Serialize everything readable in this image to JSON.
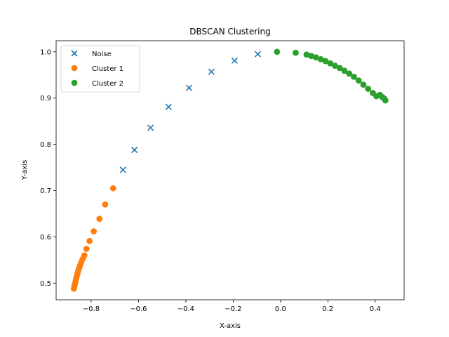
{
  "chart_data": {
    "type": "scatter",
    "title": "DBSCAN Clustering",
    "xlabel": "X-axis",
    "ylabel": "Y-axis",
    "xlim": [
      -0.948,
      0.522
    ],
    "ylim": [
      0.464,
      1.024
    ],
    "xticks": [
      -0.8,
      -0.6,
      -0.4,
      -0.2,
      0.0,
      0.2,
      0.4
    ],
    "xtick_labels": [
      "−0.8",
      "−0.6",
      "−0.4",
      "−0.2",
      "0.0",
      "0.2",
      "0.4"
    ],
    "yticks": [
      0.5,
      0.6,
      0.7,
      0.8,
      0.9,
      1.0
    ],
    "ytick_labels": [
      "0.5",
      "0.6",
      "0.7",
      "0.8",
      "0.9",
      "1.0"
    ],
    "grid": false,
    "legend_position": "upper-left",
    "series": [
      {
        "name": "Noise",
        "marker": "x",
        "color": "#1f77b4",
        "x": [
          -0.666,
          -0.617,
          -0.549,
          -0.473,
          -0.386,
          -0.292,
          -0.194,
          -0.096
        ],
        "y": [
          0.745,
          0.788,
          0.836,
          0.881,
          0.922,
          0.957,
          0.981,
          0.995
        ]
      },
      {
        "name": "Cluster 1",
        "marker": "o",
        "color": "#ff7f0e",
        "x": [
          -0.873,
          -0.871,
          -0.869,
          -0.866,
          -0.864,
          -0.861,
          -0.858,
          -0.855,
          -0.851,
          -0.847,
          -0.842,
          -0.836,
          -0.829,
          -0.82,
          -0.807,
          -0.789,
          -0.765,
          -0.741,
          -0.707
        ],
        "y": [
          0.488,
          0.493,
          0.498,
          0.503,
          0.509,
          0.514,
          0.52,
          0.526,
          0.532,
          0.538,
          0.545,
          0.552,
          0.56,
          0.574,
          0.591,
          0.612,
          0.639,
          0.67,
          0.705
        ]
      },
      {
        "name": "Cluster 2",
        "marker": "o",
        "color": "#2ca02c",
        "x": [
          -0.015,
          0.064,
          0.11,
          0.13,
          0.15,
          0.17,
          0.19,
          0.21,
          0.23,
          0.25,
          0.27,
          0.29,
          0.31,
          0.33,
          0.35,
          0.37,
          0.39,
          0.405,
          0.42,
          0.43,
          0.438,
          0.443
        ],
        "y": [
          1.0,
          0.998,
          0.994,
          0.991,
          0.988,
          0.984,
          0.98,
          0.975,
          0.97,
          0.965,
          0.959,
          0.953,
          0.946,
          0.938,
          0.929,
          0.92,
          0.911,
          0.904,
          0.907,
          0.902,
          0.899,
          0.895
        ]
      }
    ]
  }
}
